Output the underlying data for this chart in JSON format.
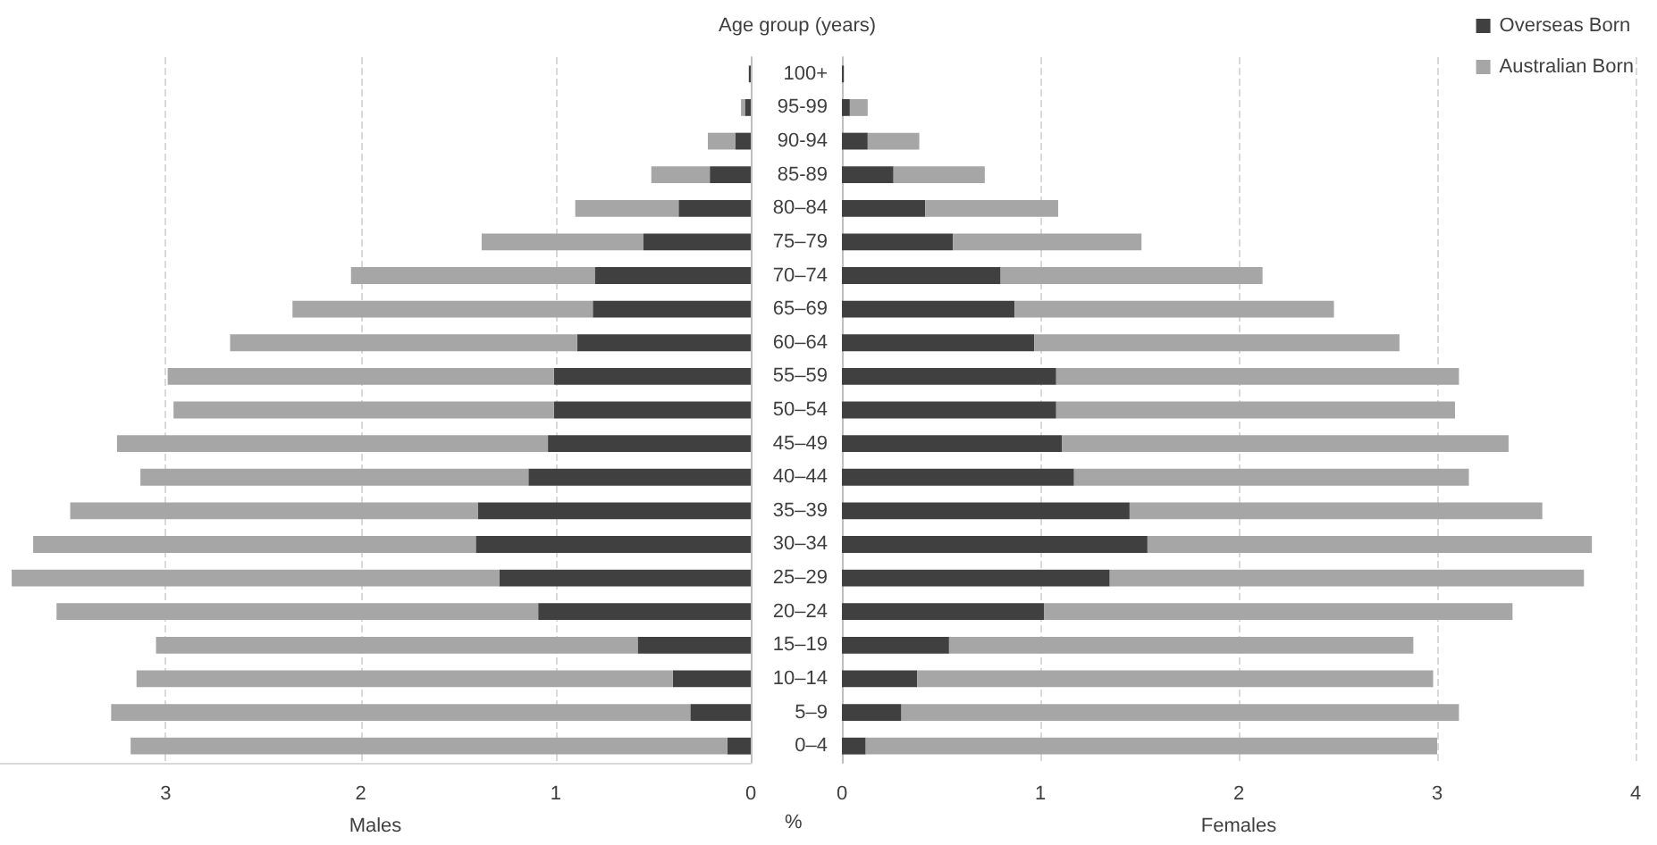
{
  "chart_data": [
    {
      "type": "bar",
      "orientation": "horizontal",
      "stacked": true,
      "xlabel": "Males",
      "tick_labels": "x",
      "grid": "x",
      "categories": [
        null,
        null,
        null,
        null,
        null,
        null,
        null,
        null,
        null,
        null,
        null,
        null,
        null,
        null,
        null,
        null,
        null,
        null,
        null,
        null,
        null
      ],
      "xlim": [
        3.85,
        0
      ],
      "xticks": [
        3,
        2,
        1,
        0
      ],
      "series": [
        {
          "color": "#404040",
          "values": [
            0.01,
            0.03,
            0.08,
            0.21,
            0.37,
            0.55,
            0.8,
            0.81,
            0.89,
            1.01,
            1.01,
            1.04,
            1.14,
            1.4,
            1.41,
            1.29,
            1.09,
            0.58,
            0.4,
            0.31,
            0.12
          ]
        },
        {
          "color": "#a6a6a6",
          "values": [
            null,
            0.02,
            0.14,
            0.3,
            0.53,
            0.83,
            1.25,
            1.54,
            1.78,
            1.98,
            1.95,
            2.21,
            1.99,
            2.09,
            2.27,
            2.5,
            2.47,
            2.47,
            2.75,
            2.97,
            3.06
          ]
        }
      ]
    },
    {
      "type": "bar",
      "orientation": "horizontal",
      "stacked": true,
      "xlabel": "Females",
      "ylabel": "Age group (years)",
      "grid": "x",
      "legend": "top right",
      "annotations": [
        "%"
      ],
      "categories": [
        "100+",
        "95-99",
        "90-94",
        "85-89",
        "80–84",
        "75–79",
        "70–74",
        "65–69",
        "60–64",
        "55–59",
        "50–54",
        "45–49",
        "40–44",
        "35–39",
        "30–34",
        "25–29",
        "20–24",
        "15–19",
        "10–14",
        "5–9",
        "0–4"
      ],
      "xlim": [
        0,
        4
      ],
      "xticks": [
        0,
        1,
        2,
        3,
        4
      ],
      "series": [
        {
          "name": "Overseas Born",
          "color": "#404040",
          "values": [
            0.01,
            0.04,
            0.13,
            0.26,
            0.42,
            0.56,
            0.8,
            0.87,
            0.97,
            1.08,
            1.08,
            1.11,
            1.17,
            1.45,
            1.54,
            1.35,
            1.02,
            0.54,
            0.38,
            0.3,
            0.12
          ]
        },
        {
          "name": "Australian Born",
          "color": "#a6a6a6",
          "values": [
            null,
            0.09,
            0.26,
            0.46,
            0.67,
            0.95,
            1.32,
            1.61,
            1.84,
            2.03,
            2.01,
            2.25,
            1.99,
            2.08,
            2.24,
            2.39,
            2.36,
            2.34,
            2.6,
            2.81,
            2.88
          ]
        }
      ]
    }
  ]
}
